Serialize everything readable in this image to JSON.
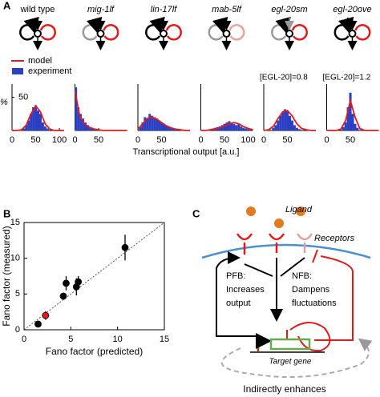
{
  "panels": [
    "A",
    "B",
    "C"
  ],
  "panel_a_xlabel": "Transcriptional output  [a.u.]",
  "chart_data": [
    {
      "type": "bar",
      "title": "wild type",
      "ylabel": "%",
      "xlim": [
        0,
        110
      ],
      "ylim": [
        0,
        70
      ],
      "xticks": [
        0,
        50,
        100
      ],
      "yticks": [
        50
      ],
      "series": [
        {
          "name": "experiment",
          "type": "bar",
          "color": "#2a3fc4",
          "x": [
            25,
            30,
            35,
            40,
            45,
            50,
            55,
            60,
            65,
            70,
            75
          ],
          "values": [
            3,
            8,
            15,
            25,
            35,
            38,
            30,
            25,
            12,
            6,
            3
          ]
        },
        {
          "name": "model",
          "type": "line",
          "color": "#e31a1c",
          "x": [
            0,
            10,
            20,
            30,
            40,
            50,
            60,
            70,
            80,
            90,
            100,
            110
          ],
          "values": [
            0,
            0,
            1,
            8,
            25,
            37,
            28,
            10,
            2,
            0,
            0,
            0
          ]
        }
      ]
    },
    {
      "type": "bar",
      "title": "mig-1lf",
      "xlim": [
        0,
        110
      ],
      "ylim": [
        0,
        70
      ],
      "xticks": [
        0,
        50
      ],
      "yticks": [],
      "series": [
        {
          "type": "bar",
          "color": "#2a3fc4",
          "x": [
            2,
            7,
            12,
            17,
            22,
            27,
            32,
            37,
            42,
            47,
            52
          ],
          "values": [
            65,
            35,
            25,
            18,
            12,
            8,
            5,
            4,
            3,
            2,
            1
          ]
        },
        {
          "type": "line",
          "color": "#e31a1c",
          "x": [
            0,
            10,
            20,
            30,
            40,
            50,
            60,
            70,
            80,
            90,
            100,
            110
          ],
          "values": [
            60,
            22,
            10,
            5,
            2,
            1,
            0,
            0,
            0,
            0,
            0,
            0
          ]
        }
      ]
    },
    {
      "type": "bar",
      "title": "lin-17lf",
      "xlim": [
        0,
        110
      ],
      "ylim": [
        0,
        70
      ],
      "xticks": [
        0,
        50
      ],
      "yticks": [],
      "series": [
        {
          "type": "bar",
          "color": "#2a3fc4",
          "x": [
            5,
            10,
            15,
            20,
            25,
            30,
            35,
            40,
            45,
            50,
            55,
            60,
            65,
            70,
            75,
            80
          ],
          "values": [
            5,
            12,
            20,
            18,
            25,
            22,
            20,
            18,
            15,
            12,
            10,
            8,
            6,
            5,
            3,
            2
          ]
        },
        {
          "type": "line",
          "color": "#e31a1c",
          "x": [
            0,
            10,
            20,
            30,
            40,
            50,
            60,
            70,
            80,
            90,
            100,
            110
          ],
          "values": [
            2,
            10,
            18,
            20,
            17,
            12,
            7,
            4,
            2,
            1,
            0,
            0
          ]
        }
      ]
    },
    {
      "type": "bar",
      "title": "mab-5lf",
      "xlim": [
        0,
        110
      ],
      "ylim": [
        0,
        70
      ],
      "xticks": [
        0,
        50,
        100
      ],
      "yticks": [],
      "series": [
        {
          "type": "bar",
          "color": "#2a3fc4",
          "x": [
            20,
            25,
            30,
            35,
            40,
            45,
            50,
            55,
            60,
            65,
            70,
            75,
            80,
            85,
            90,
            95,
            100
          ],
          "values": [
            2,
            3,
            4,
            5,
            6,
            8,
            10,
            12,
            14,
            12,
            10,
            8,
            10,
            6,
            4,
            3,
            2
          ]
        },
        {
          "type": "line",
          "color": "#e31a1c",
          "x": [
            0,
            10,
            20,
            30,
            40,
            50,
            60,
            70,
            80,
            90,
            100,
            110
          ],
          "values": [
            0,
            0,
            1,
            2,
            4,
            7,
            10,
            12,
            10,
            6,
            3,
            1
          ]
        }
      ]
    },
    {
      "type": "bar",
      "title": "egl-20sm",
      "annotation": "[EGL-20]=0.8",
      "xlim": [
        0,
        110
      ],
      "ylim": [
        0,
        70
      ],
      "xticks": [
        0,
        50
      ],
      "yticks": [],
      "series": [
        {
          "type": "bar",
          "color": "#2a3fc4",
          "x": [
            20,
            25,
            30,
            35,
            40,
            45,
            50,
            55,
            60,
            65,
            70,
            75
          ],
          "values": [
            4,
            8,
            15,
            22,
            28,
            32,
            30,
            22,
            15,
            8,
            4,
            2
          ]
        },
        {
          "type": "line",
          "color": "#e31a1c",
          "x": [
            0,
            10,
            20,
            30,
            40,
            50,
            60,
            70,
            80,
            90,
            100,
            110
          ],
          "values": [
            0,
            1,
            6,
            18,
            28,
            30,
            22,
            10,
            3,
            1,
            0,
            0
          ]
        }
      ]
    },
    {
      "type": "bar",
      "title": "egl-20ove",
      "annotation": "[EGL-20]=1.2",
      "xlim": [
        0,
        110
      ],
      "ylim": [
        0,
        70
      ],
      "xticks": [
        0,
        50
      ],
      "yticks": [],
      "series": [
        {
          "type": "bar",
          "color": "#2a3fc4",
          "x": [
            35,
            40,
            45,
            50,
            55,
            60,
            65
          ],
          "values": [
            5,
            12,
            35,
            57,
            25,
            10,
            4
          ]
        },
        {
          "type": "line",
          "color": "#e31a1c",
          "x": [
            0,
            10,
            20,
            30,
            40,
            50,
            60,
            70,
            80,
            90,
            100,
            110
          ],
          "values": [
            0,
            0,
            0,
            2,
            15,
            45,
            20,
            3,
            0,
            0,
            0,
            0
          ]
        }
      ]
    },
    {
      "type": "scatter",
      "xlabel": "Fano factor (predicted)",
      "ylabel": "Fano factor (measured)",
      "xlim": [
        0,
        15
      ],
      "ylim": [
        0,
        15
      ],
      "xticks": [
        0,
        5,
        10,
        15
      ],
      "yticks": [
        0,
        5,
        10,
        15
      ],
      "diagonal": true,
      "x": [
        1.5,
        2.3,
        4.2,
        4.5,
        5.6,
        5.8,
        10.8
      ],
      "values": [
        0.8,
        2.0,
        4.7,
        6.5,
        6.0,
        6.7,
        11.5
      ],
      "errors": [
        0.3,
        0.6,
        0.5,
        1.0,
        1.2,
        0.8,
        1.8
      ],
      "colors": [
        "#000000",
        "#e31a1c",
        "#000000",
        "#000000",
        "#000000",
        "#000000",
        "#000000"
      ]
    }
  ],
  "diagram": {
    "ligand": "Ligand",
    "receptors": "Receptors",
    "pfb": [
      "PFB:",
      "Increases",
      "output"
    ],
    "nfb": [
      "NFB:",
      "Dampens",
      "fluctuations"
    ],
    "target_gene": "Target gene",
    "indirect": "Indirectly enhances"
  }
}
